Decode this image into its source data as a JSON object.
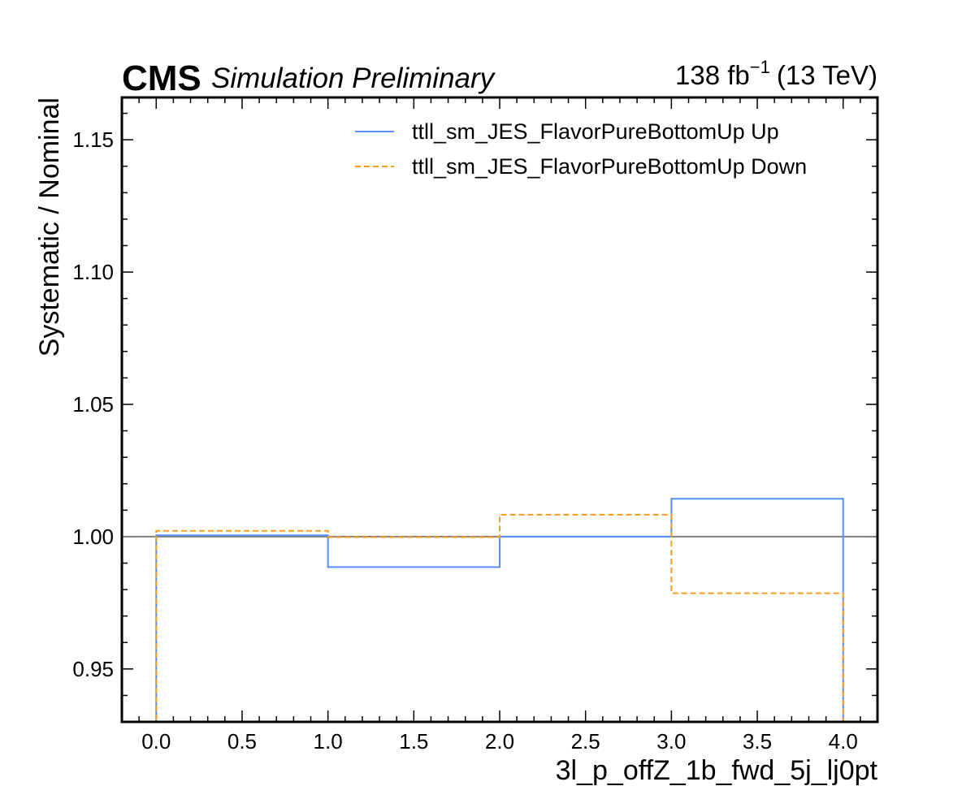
{
  "header": {
    "experiment": "CMS",
    "status": "Simulation Preliminary",
    "lumi_value": "138 fb",
    "lumi_exponent": "−1",
    "energy": "(13 TeV)"
  },
  "chart_data": {
    "type": "step",
    "xlabel": "3l_p_offZ_1b_fwd_5j_lj0pt",
    "ylabel": "Systematic / Nominal",
    "xlim": [
      -0.2,
      4.2
    ],
    "ylim": [
      0.93,
      1.166
    ],
    "x_ticks": [
      0.0,
      0.5,
      1.0,
      1.5,
      2.0,
      2.5,
      3.0,
      3.5,
      4.0
    ],
    "x_tick_labels": [
      "0.0",
      "0.5",
      "1.0",
      "1.5",
      "2.0",
      "2.5",
      "3.0",
      "3.5",
      "4.0"
    ],
    "y_ticks": [
      0.95,
      1.0,
      1.05,
      1.1,
      1.15
    ],
    "y_tick_labels": [
      "0.95",
      "1.00",
      "1.05",
      "1.10",
      "1.15"
    ],
    "reference_line": 1.0,
    "bin_edges": [
      0,
      1,
      2,
      3,
      4
    ],
    "legend_position": "top-right",
    "series": [
      {
        "name": "ttll_sm_JES_FlavorPureBottomUp Up",
        "color": "#5790fc",
        "style": "solid",
        "values": [
          1.0005,
          0.9885,
          1.0,
          1.0143
        ]
      },
      {
        "name": "ttll_sm_JES_FlavorPureBottomUp Down",
        "color": "#f89c20",
        "style": "dashed",
        "values": [
          1.0022,
          0.9998,
          1.0083,
          0.9786
        ]
      }
    ],
    "reference_color": "#808080"
  }
}
